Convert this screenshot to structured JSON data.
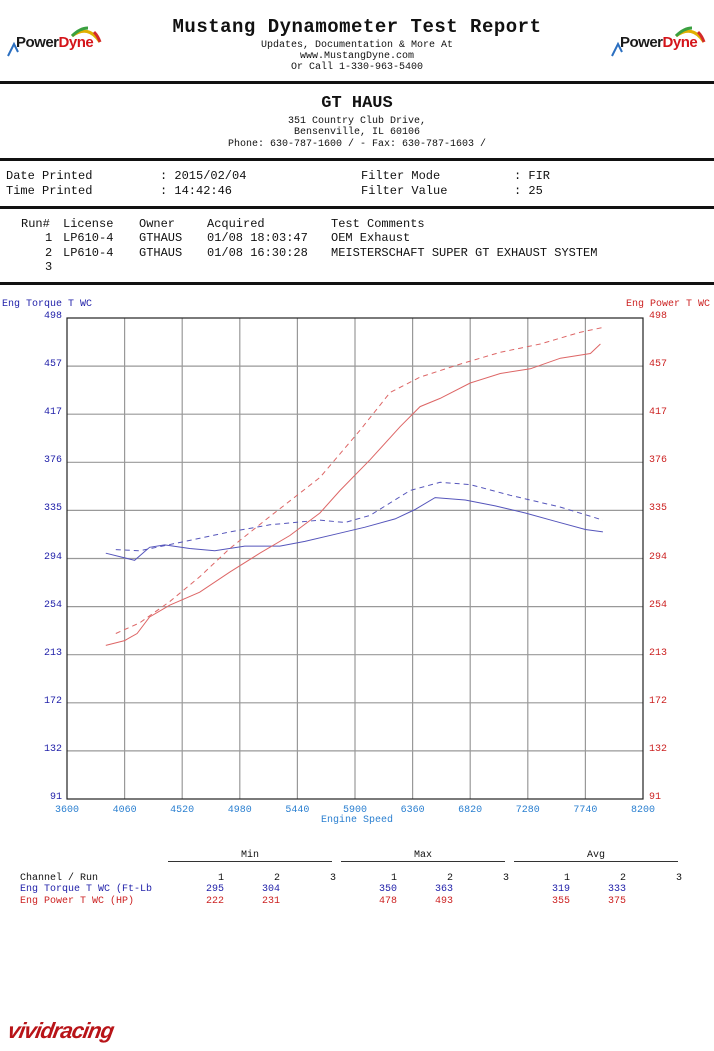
{
  "header": {
    "title": "Mustang Dynamometer Test Report",
    "line1": "Updates, Documentation & More At",
    "line2": "www.MustangDyne.com",
    "line3": "Or Call 1-330-963-5400",
    "logo_left": {
      "part1": "Power",
      "part2": "Dyne"
    },
    "logo_right": {
      "part1": "Power",
      "part2": "Dyne"
    }
  },
  "shop": {
    "name": "GT HAUS",
    "address1": "351 Country Club Drive,",
    "address2": "Bensenville, IL  60106",
    "phone": "Phone: 630-787-1600 /  - Fax: 630-787-1603 /"
  },
  "info": {
    "date_label": "Date Printed",
    "date_value": ": 2015/02/04",
    "time_label": "Time Printed",
    "time_value": ": 14:42:46",
    "filter_mode_label": "Filter Mode",
    "filter_mode_value": ": FIR",
    "filter_value_label": "Filter Value",
    "filter_value_value": ": 25"
  },
  "runs": {
    "headers": [
      "Run#",
      "License",
      "Owner",
      "Acquired",
      "Test Comments"
    ],
    "rows": [
      {
        "run": "1",
        "license": "LP610-4",
        "owner": "GTHAUS",
        "acquired": "01/08 18:03:47",
        "comment": "OEM Exhaust"
      },
      {
        "run": "2",
        "license": "LP610-4",
        "owner": "GTHAUS",
        "acquired": "01/08 16:30:28",
        "comment": "MEISTERSCHAFT SUPER GT EXHAUST SYSTEM"
      },
      {
        "run": "3",
        "license": "",
        "owner": "",
        "acquired": "",
        "comment": ""
      }
    ]
  },
  "colors": {
    "torque": "#5555bb",
    "power": "#dd6666",
    "torque_axis": "#2222aa",
    "power_axis": "#cc2222",
    "x_axis": "#2a7fd0",
    "grid": "#999999"
  },
  "chart_data": {
    "type": "line",
    "title": "",
    "xlabel": "Engine Speed",
    "ylabel_left": "Eng Torque T WC",
    "ylabel_right": "Eng Power T WC",
    "xlim": [
      3600,
      8200
    ],
    "ylim": [
      91,
      498
    ],
    "x_ticks": [
      "3600",
      "4060",
      "4520",
      "4980",
      "5440",
      "5900",
      "6360",
      "6820",
      "7280",
      "7740",
      "8200"
    ],
    "y_ticks_left": [
      "498",
      "457",
      "417",
      "376",
      "335",
      "294",
      "254",
      "213",
      "172",
      "132",
      "91"
    ],
    "y_ticks_right": [
      "498",
      "457",
      "417",
      "376",
      "335",
      "294",
      "254",
      "213",
      "172",
      "132",
      "91"
    ],
    "grid": true,
    "series": [
      {
        "name": "Eng Torque T WC Run 1",
        "style": "solid",
        "color": "#5555bb",
        "x": [
          3910,
          4140,
          4260,
          4380,
          4580,
          4780,
          5020,
          5300,
          5500,
          5740,
          5980,
          6220,
          6380,
          6540,
          6780,
          7020,
          7260,
          7500,
          7740,
          7880
        ],
        "y": [
          299,
          293,
          304,
          306,
          303,
          301,
          305,
          305,
          309,
          315,
          321,
          328,
          336,
          346,
          344,
          339,
          333,
          326,
          319,
          317
        ]
      },
      {
        "name": "Eng Torque T WC Run 2",
        "style": "dashed",
        "color": "#5555bb",
        "x": [
          3990,
          4180,
          4500,
          4900,
          5220,
          5620,
          5820,
          6020,
          6340,
          6580,
          6820,
          7140,
          7540,
          7880
        ],
        "y": [
          302,
          301,
          308,
          317,
          323,
          327,
          325,
          331,
          352,
          359,
          357,
          348,
          338,
          327
        ]
      },
      {
        "name": "Eng Power T WC Run 1",
        "style": "solid",
        "color": "#dd6666",
        "x": [
          3910,
          4060,
          4160,
          4260,
          4420,
          4660,
          4900,
          5140,
          5380,
          5620,
          5780,
          6020,
          6260,
          6420,
          6580,
          6820,
          7060,
          7300,
          7540,
          7780,
          7860
        ],
        "y": [
          221,
          225,
          231,
          245,
          255,
          266,
          283,
          299,
          314,
          333,
          352,
          378,
          406,
          423,
          430,
          443,
          451,
          455,
          464,
          468,
          476
        ]
      },
      {
        "name": "Eng Power T WC Run 2",
        "style": "dashed",
        "color": "#dd6666",
        "x": [
          3990,
          4180,
          4420,
          4660,
          4900,
          5220,
          5620,
          5940,
          6180,
          6420,
          6740,
          7060,
          7380,
          7700,
          7880
        ],
        "y": [
          231,
          240,
          258,
          279,
          303,
          330,
          363,
          403,
          435,
          448,
          459,
          469,
          476,
          486,
          490
        ]
      }
    ]
  },
  "stats": {
    "groups": [
      "Min",
      "Max",
      "Avg"
    ],
    "channel_header": "Channel / Run",
    "run_headers": [
      "1",
      "2",
      "3"
    ],
    "rows": [
      {
        "channel": "Eng Torque T WC (Ft-Lb",
        "min": [
          "295",
          "304",
          ""
        ],
        "max": [
          "350",
          "363",
          ""
        ],
        "avg": [
          "319",
          "333",
          ""
        ]
      },
      {
        "channel": "Eng Power T WC (HP)",
        "min": [
          "222",
          "231",
          ""
        ],
        "max": [
          "478",
          "493",
          ""
        ],
        "avg": [
          "355",
          "375",
          ""
        ]
      }
    ]
  },
  "footer": {
    "logo_text": "vividracing"
  }
}
